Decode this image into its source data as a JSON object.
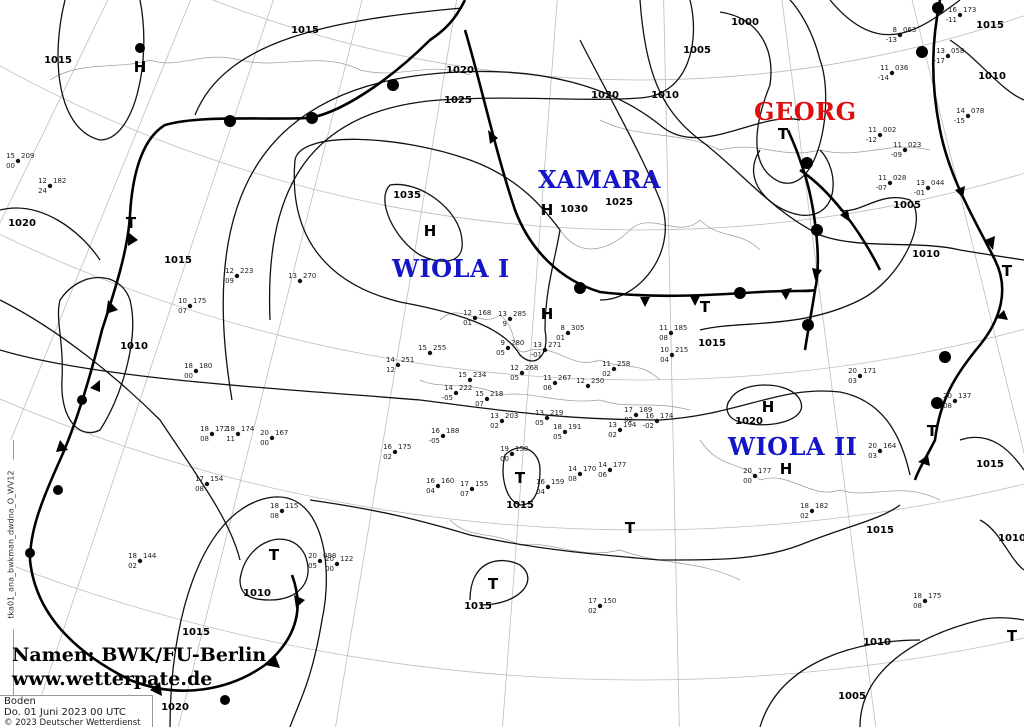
{
  "credits": {
    "line1": "Namen: BWK/FU-Berlin",
    "line2": "www.wetterpate.de"
  },
  "info": {
    "level": "Boden",
    "datetime": "Do. 01 Juni 2023 00 UTC",
    "copyright": "© 2023 Deutscher Wetterdienst"
  },
  "product_code": "tka01_ana_bwkman_dwdna_O_WV12",
  "systems": [
    {
      "name": "XAMARA",
      "color": "#1515c8"
    },
    {
      "name": "GEORG",
      "color": "#e01010"
    },
    {
      "name": "WIOLA I",
      "color": "#1515c8"
    },
    {
      "name": "WIOLA II",
      "color": "#1515c8"
    }
  ],
  "pressure_centers": [
    "H",
    "H",
    "H",
    "H",
    "H",
    "H",
    "T",
    "T",
    "T",
    "T",
    "T",
    "T",
    "T",
    "T",
    "T",
    "T"
  ],
  "isobar_labels": [
    "1015",
    "1020",
    "1025",
    "1020",
    "1010",
    "1000",
    "1005",
    "1015",
    "1010",
    "1015",
    "1020",
    "1015",
    "1010",
    "1035",
    "1030",
    "1025",
    "1005",
    "1010",
    "1015",
    "1020",
    "1015",
    "1015",
    "1015",
    "1015",
    "1010",
    "1010",
    "1005",
    "1010",
    "1015",
    "1020"
  ],
  "stations": [
    {
      "t": "12",
      "p": "168",
      "d": "01"
    },
    {
      "t": "13",
      "p": "285",
      "d": "9"
    },
    {
      "t": "8",
      "p": "305",
      "d": "01"
    },
    {
      "t": "15",
      "p": "255",
      "d": ""
    },
    {
      "t": "14",
      "p": "251",
      "d": "12"
    },
    {
      "t": "9",
      "p": "280",
      "d": "05"
    },
    {
      "t": "13",
      "p": "271",
      "d": "-01"
    },
    {
      "t": "12",
      "p": "268",
      "d": "05"
    },
    {
      "t": "11",
      "p": "267",
      "d": "06"
    },
    {
      "t": "12",
      "p": "250",
      "d": ""
    },
    {
      "t": "11",
      "p": "258",
      "d": "02"
    },
    {
      "t": "14",
      "p": "222",
      "d": "-05"
    },
    {
      "t": "15",
      "p": "218",
      "d": "07"
    },
    {
      "t": "15",
      "p": "234",
      "d": ""
    },
    {
      "t": "13",
      "p": "203",
      "d": "02"
    },
    {
      "t": "13",
      "p": "219",
      "d": "05"
    },
    {
      "t": "18",
      "p": "191",
      "d": "05"
    },
    {
      "t": "13",
      "p": "194",
      "d": "02"
    },
    {
      "t": "17",
      "p": "189",
      "d": "02"
    },
    {
      "t": "16",
      "p": "188",
      "d": "-05"
    },
    {
      "t": "19",
      "p": "158",
      "d": "00"
    },
    {
      "t": "16",
      "p": "175",
      "d": "02"
    },
    {
      "t": "16",
      "p": "160",
      "d": "04"
    },
    {
      "t": "17",
      "p": "155",
      "d": "07"
    },
    {
      "t": "16",
      "p": "159",
      "d": "04"
    },
    {
      "t": "14",
      "p": "170",
      "d": "08"
    },
    {
      "t": "14",
      "p": "177",
      "d": "06"
    },
    {
      "t": "16",
      "p": "174",
      "d": "-02"
    },
    {
      "t": "10",
      "p": "215",
      "d": "04"
    },
    {
      "t": "11",
      "p": "185",
      "d": "08"
    },
    {
      "t": "15",
      "p": "209",
      "d": "00"
    },
    {
      "t": "12",
      "p": "182",
      "d": "24"
    },
    {
      "t": "10",
      "p": "175",
      "d": "07"
    },
    {
      "t": "18",
      "p": "180",
      "d": "00"
    },
    {
      "t": "18",
      "p": "172",
      "d": "08"
    },
    {
      "t": "18",
      "p": "174",
      "d": "11"
    },
    {
      "t": "20",
      "p": "167",
      "d": "00"
    },
    {
      "t": "12",
      "p": "223",
      "d": "09"
    },
    {
      "t": "13",
      "p": "270",
      "d": ""
    },
    {
      "t": "18",
      "p": "115",
      "d": "08"
    },
    {
      "t": "20",
      "p": "098",
      "d": "05"
    },
    {
      "t": "20",
      "p": "122",
      "d": "00"
    },
    {
      "t": "18",
      "p": "144",
      "d": "02"
    },
    {
      "t": "17",
      "p": "154",
      "d": "08"
    },
    {
      "t": "20",
      "p": "171",
      "d": "03"
    },
    {
      "t": "20",
      "p": "164",
      "d": "03"
    },
    {
      "t": "20",
      "p": "137",
      "d": "08"
    },
    {
      "t": "18",
      "p": "182",
      "d": "02"
    },
    {
      "t": "20",
      "p": "177",
      "d": "00"
    },
    {
      "t": "17",
      "p": "150",
      "d": "02"
    },
    {
      "t": "18",
      "p": "175",
      "d": "08"
    },
    {
      "t": "8",
      "p": "063",
      "d": "-13"
    },
    {
      "t": "11",
      "p": "036",
      "d": "-14"
    },
    {
      "t": "11",
      "p": "002",
      "d": "-12"
    },
    {
      "t": "11",
      "p": "023",
      "d": "-09"
    },
    {
      "t": "11",
      "p": "028",
      "d": "-07"
    },
    {
      "t": "13",
      "p": "044",
      "d": "-01"
    },
    {
      "t": "13",
      "p": "058",
      "d": "-17"
    },
    {
      "t": "14",
      "p": "078",
      "d": "-15"
    },
    {
      "t": "16",
      "p": "173",
      "d": "-11"
    }
  ]
}
